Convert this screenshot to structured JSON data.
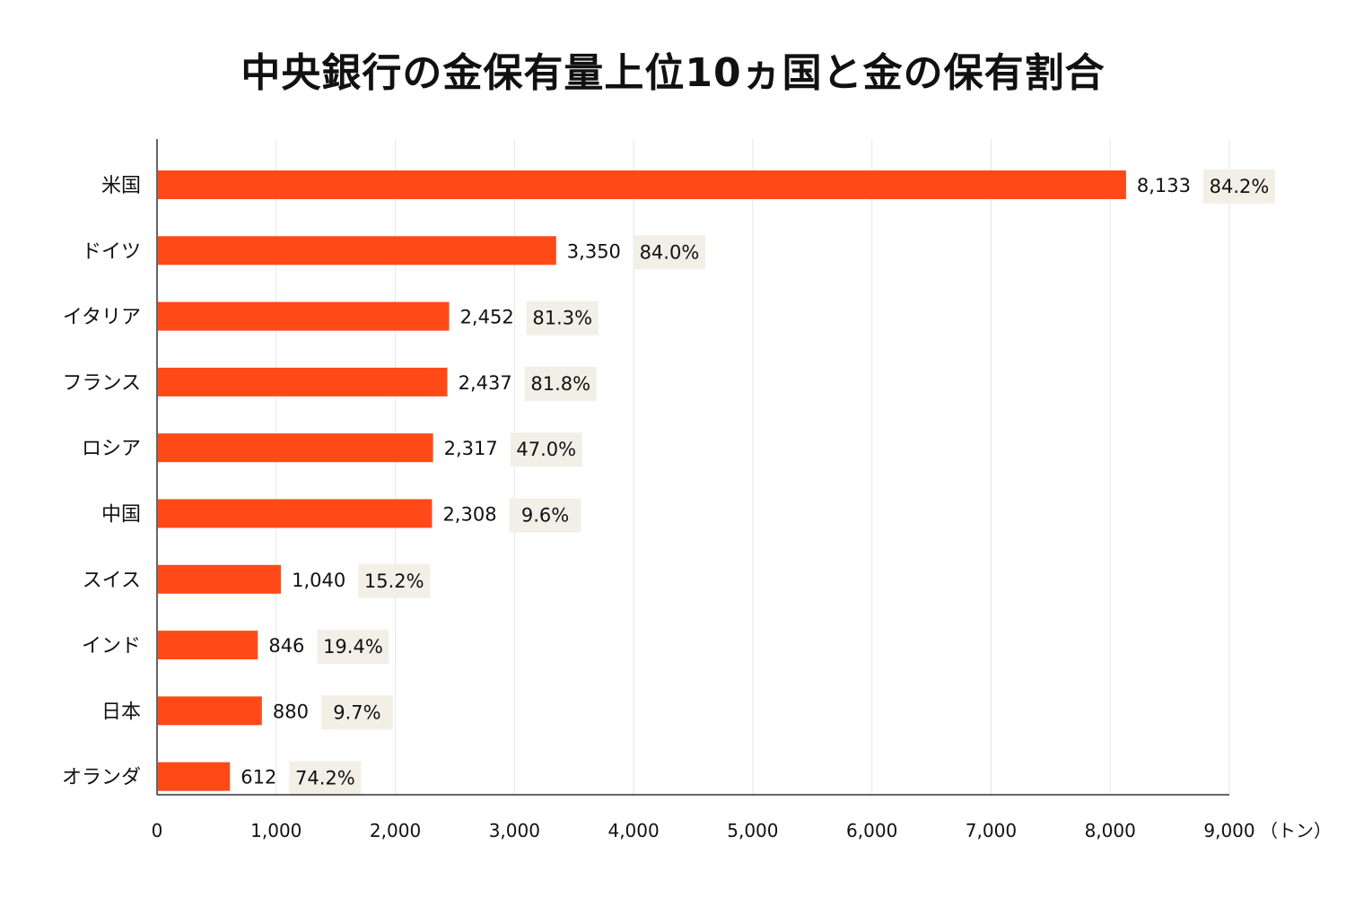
{
  "chart_data": {
    "type": "bar",
    "orientation": "horizontal",
    "title": "中央銀行の金保有量上位10ヵ国と金の保有割合",
    "unit_label": "（トン）",
    "categories": [
      "米国",
      "ドイツ",
      "イタリア",
      "フランス",
      "ロシア",
      "中国",
      "スイス",
      "インド",
      "日本",
      "オランダ"
    ],
    "values": [
      8133,
      3350,
      2452,
      2437,
      2317,
      2308,
      1040,
      846,
      880,
      612
    ],
    "value_labels": [
      "8,133",
      "3,350",
      "2,452",
      "2,437",
      "2,317",
      "2,308",
      "1,040",
      "846",
      "880",
      "612"
    ],
    "share_labels": [
      "84.2%",
      "84.0%",
      "81.3%",
      "81.8%",
      "47.0%",
      "9.6%",
      "15.2%",
      "19.4%",
      "9.7%",
      "74.2%"
    ],
    "xlim": [
      0,
      9000
    ],
    "xticks": [
      0,
      1000,
      2000,
      3000,
      4000,
      5000,
      6000,
      7000,
      8000,
      9000
    ],
    "xtick_labels": [
      "0",
      "1,000",
      "2,000",
      "3,000",
      "4,000",
      "5,000",
      "6,000",
      "7,000",
      "8,000",
      "9,000"
    ],
    "grid": true,
    "colors": {
      "bar": "#ff4a17",
      "share_box": "#f2efe7",
      "grid": "#e6e6e6",
      "axis": "#333333"
    }
  }
}
